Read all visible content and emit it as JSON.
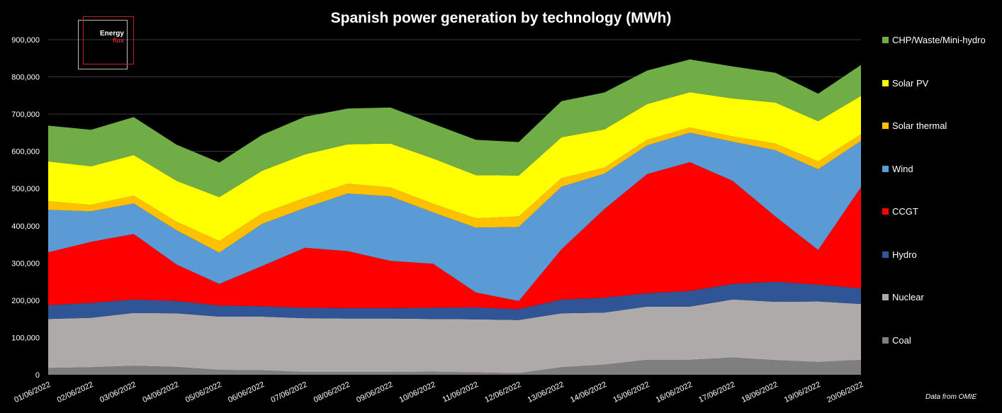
{
  "chart_data": {
    "type": "area",
    "stacked": true,
    "title": "Spanish power generation by technology (MWh)",
    "xlabel": "",
    "ylabel": "",
    "ylim": [
      0,
      900000
    ],
    "yticks": [
      "0",
      "100,000",
      "200,000",
      "300,000",
      "400,000",
      "500,000",
      "600,000",
      "700,000",
      "800,000",
      "900,000"
    ],
    "yticks_values": [
      0,
      100000,
      200000,
      300000,
      400000,
      500000,
      600000,
      700000,
      800000,
      900000
    ],
    "grid": true,
    "legend_position": "right",
    "categories": [
      "01/06/2022",
      "02/06/2022",
      "03/06/2022",
      "04/06/2022",
      "05/06/2022",
      "06/06/2022",
      "07/06/2022",
      "08/06/2022",
      "09/06/2022",
      "10/06/2022",
      "11/06/2022",
      "12/06/2022",
      "13/06/2022",
      "14/06/2022",
      "15/06/2022",
      "16/06/2022",
      "17/06/2022",
      "18/06/2022",
      "19/06/2022",
      "20/06/2022"
    ],
    "series": [
      {
        "name": "Coal",
        "color": "#7f7f7f",
        "values": [
          18000,
          20000,
          24000,
          21000,
          13000,
          12000,
          7000,
          7000,
          7000,
          8000,
          6000,
          4000,
          20000,
          27000,
          40000,
          40000,
          46000,
          39000,
          34000,
          40000
        ]
      },
      {
        "name": "Nuclear",
        "color": "#aeaaaa",
        "values": [
          132000,
          133000,
          142000,
          144000,
          143000,
          144000,
          145000,
          144000,
          144000,
          142000,
          143000,
          143000,
          145000,
          140000,
          143000,
          143000,
          156000,
          157000,
          163000,
          150000
        ]
      },
      {
        "name": "Hydro",
        "color": "#2f5597",
        "values": [
          37000,
          40000,
          36000,
          33000,
          30000,
          28000,
          28000,
          28000,
          28000,
          30000,
          32000,
          29000,
          37000,
          40000,
          36000,
          42000,
          42000,
          54000,
          45000,
          42000
        ]
      },
      {
        "name": "CCGT",
        "color": "#ff0000",
        "values": [
          142000,
          164000,
          176000,
          98000,
          58000,
          108000,
          161000,
          153000,
          127000,
          118000,
          40000,
          22000,
          135000,
          238000,
          320000,
          346000,
          277000,
          175000,
          93000,
          272000
        ]
      },
      {
        "name": "Wind",
        "color": "#5b9bd5",
        "values": [
          114000,
          82000,
          82000,
          92000,
          84000,
          113000,
          107000,
          155000,
          173000,
          138000,
          174000,
          199000,
          168000,
          95000,
          77000,
          79000,
          105000,
          178000,
          217000,
          124000
        ]
      },
      {
        "name": "Solar thermal",
        "color": "#ffc000",
        "values": [
          23000,
          17000,
          21000,
          23000,
          31000,
          28000,
          27000,
          26000,
          24000,
          23000,
          25000,
          28000,
          23000,
          16000,
          15000,
          14000,
          14000,
          18000,
          21000,
          18000
        ]
      },
      {
        "name": "Solar PV",
        "color": "#ffff00",
        "values": [
          107000,
          104000,
          109000,
          110000,
          118000,
          115000,
          117000,
          106000,
          118000,
          122000,
          116000,
          110000,
          110000,
          103000,
          96000,
          95000,
          102000,
          110000,
          108000,
          103000
        ]
      },
      {
        "name": "CHP/Waste/Mini-hydro",
        "color": "#70ad47",
        "values": [
          96000,
          98000,
          102000,
          97000,
          93000,
          96000,
          101000,
          96000,
          97000,
          93000,
          95000,
          90000,
          97000,
          99000,
          90000,
          88000,
          86000,
          80000,
          74000,
          83000
        ]
      }
    ]
  },
  "logo": {
    "line1": "Energy",
    "line2": "flux"
  },
  "source_note": "Data from OMIE"
}
